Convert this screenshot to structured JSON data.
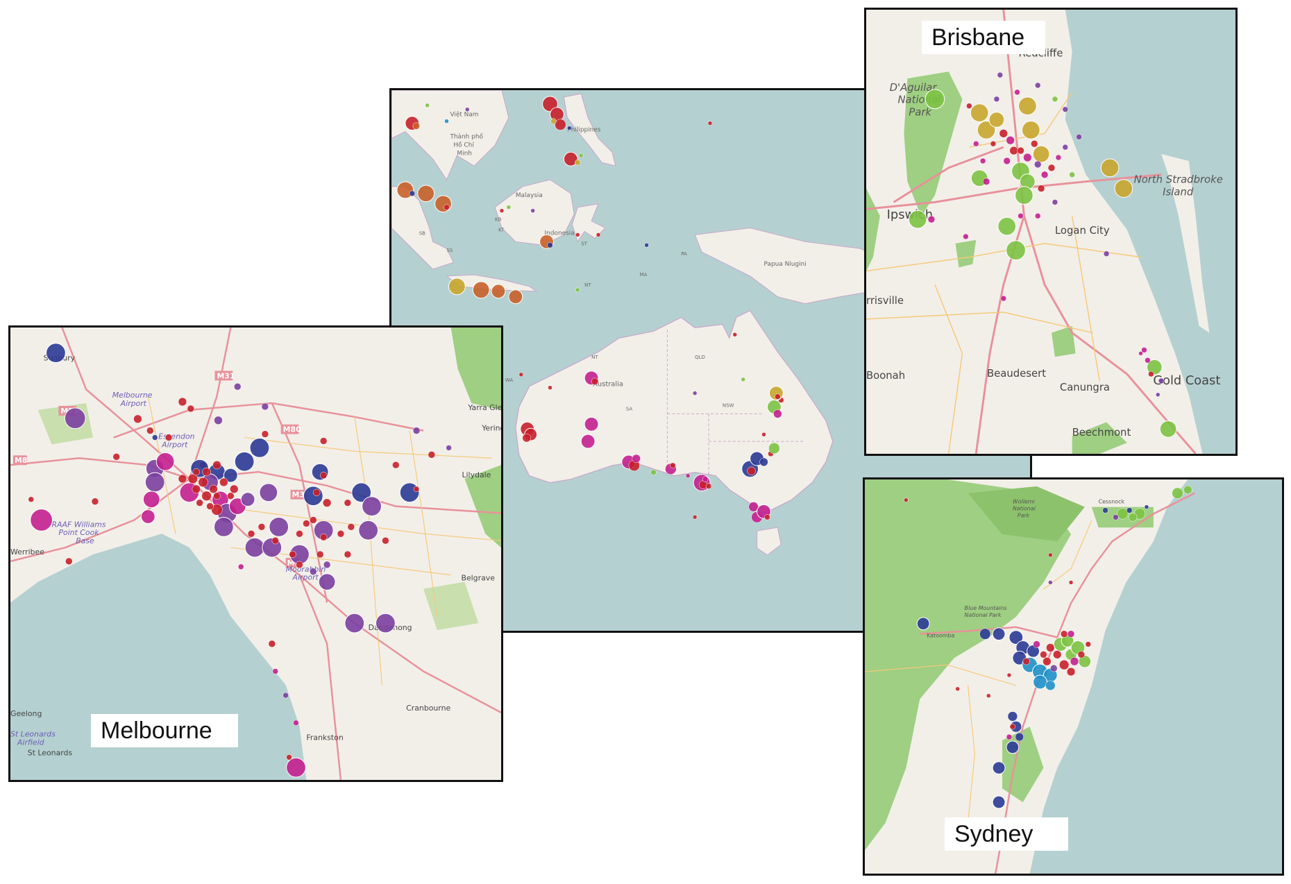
{
  "colors": {
    "sea": "#b5d0d0",
    "land": "#f2efe9",
    "park": "#9fcf82",
    "road": "#e8919b",
    "minor_road": "#f7c979",
    "red": "#c8202a",
    "magenta": "#c41f8f",
    "purple": "#7b3fa0",
    "blue": "#2b3a95",
    "green": "#7cc242",
    "olive": "#c8a52c",
    "orange": "#c8602a",
    "cyan": "#1e90c8"
  },
  "panels": {
    "australia": {
      "place_labels": [
        "Việt Nam",
        "Thành phố",
        "Hồ Chí",
        "Minh",
        "Philippines",
        "Malaysia",
        "Indonesia",
        "Papua Niugini",
        "Australia",
        "NT",
        "WA",
        "QLD",
        "SA",
        "NSW",
        "KB",
        "KT",
        "SB",
        "SS",
        "MA",
        "PA",
        "NT",
        "ST"
      ]
    },
    "brisbane": {
      "title": "Brisbane",
      "place_labels": [
        "Redcliffe",
        "D'Aguilar",
        "National",
        "Park",
        "North Stradbroke",
        "Island",
        "Ipswich",
        "Logan City",
        "rrisville",
        "Boonah",
        "Beaudesert",
        "Canungra",
        "Gold Coast",
        "Beechmont"
      ]
    },
    "sydney": {
      "title": "Sydney",
      "place_labels": [
        "Wollemi",
        "National",
        "Park",
        "Blue Mountains",
        "National Park",
        "Cessnock",
        "Katoomba"
      ]
    },
    "melbourne": {
      "title": "Melbourne",
      "place_labels": [
        "Sunbury",
        "Melbourne",
        "Airport",
        "Essendon",
        "Airport",
        "Yarra Glen",
        "Yering",
        "Lilydale",
        "RAAF Williams",
        "Point Cook",
        "Base",
        "Werribee",
        "Moorabbin",
        "Airport",
        "Dandenong",
        "Belgrave",
        "Cranbourne",
        "Frankston",
        "St Leonards",
        "Airfield",
        "St Leonards",
        "Geelong",
        "M31",
        "M79",
        "M80",
        "M8",
        "M3",
        "M1"
      ]
    }
  }
}
